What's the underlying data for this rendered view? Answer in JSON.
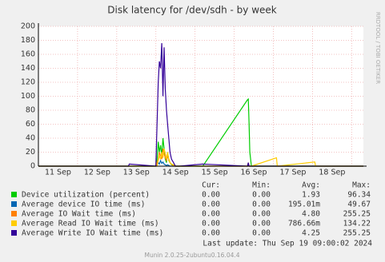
{
  "chart_data": {
    "type": "line",
    "title": "Disk latency for /dev/sdh - by week",
    "side_text": "RRDTOOL / TOBI OETIKER",
    "x": [
      11.0,
      13.3,
      13.32,
      14.0,
      14.03,
      14.06,
      14.09,
      14.12,
      14.15,
      14.18,
      14.21,
      14.24,
      14.27,
      14.3,
      14.33,
      14.36,
      14.4,
      14.45,
      14.5,
      14.6,
      15.2,
      16.34,
      16.36,
      16.38,
      16.4,
      16.44,
      17.08,
      17.1,
      18.06,
      18.08,
      19.3
    ],
    "series": [
      {
        "name": "Device utilization (percent)",
        "color": "#00cc00",
        "values": [
          0,
          0,
          0,
          0,
          10,
          35,
          20,
          30,
          15,
          40,
          25,
          10,
          5,
          20,
          8,
          5,
          2,
          1,
          0,
          0,
          0,
          95,
          96,
          60,
          20,
          0,
          0,
          0,
          0,
          0,
          0
        ]
      },
      {
        "name": "Average device IO time (ms)",
        "color": "#0066b3",
        "values": [
          0,
          0,
          0,
          0,
          2,
          5,
          3,
          8,
          4,
          6,
          3,
          2,
          1,
          2,
          1,
          0,
          0,
          0,
          0,
          0,
          0,
          0,
          1,
          0,
          0,
          0,
          0,
          0,
          0,
          0,
          0
        ]
      },
      {
        "name": "Average IO Wait time (ms)",
        "color": "#ff8000",
        "values": [
          0,
          0,
          0,
          0,
          5,
          10,
          20,
          15,
          10,
          25,
          18,
          12,
          8,
          15,
          10,
          5,
          3,
          0,
          0,
          0,
          0,
          0,
          5,
          0,
          0,
          0,
          0,
          0,
          0,
          0,
          0
        ]
      },
      {
        "name": "Average Read IO Wait time (ms)",
        "color": "#ffcc00",
        "values": [
          0,
          0,
          0,
          0,
          0,
          8,
          15,
          10,
          20,
          12,
          25,
          18,
          10,
          20,
          8,
          5,
          3,
          2,
          0,
          0,
          0,
          0,
          0,
          0,
          0,
          0,
          12,
          0,
          6,
          0,
          0
        ]
      },
      {
        "name": "Average Write IO Wait time (ms)",
        "color": "#330099",
        "values": [
          0,
          0,
          3,
          0,
          60,
          120,
          150,
          140,
          176,
          100,
          170,
          110,
          80,
          60,
          40,
          20,
          10,
          5,
          0,
          0,
          3,
          0,
          5,
          0,
          0,
          0,
          0,
          0,
          0,
          0,
          0
        ]
      }
    ],
    "xlim": [
      11,
      19.3
    ],
    "xticks": [
      {
        "value": 11.5,
        "label": "11 Sep"
      },
      {
        "value": 12.5,
        "label": "12 Sep"
      },
      {
        "value": 13.5,
        "label": "13 Sep"
      },
      {
        "value": 14.5,
        "label": "14 Sep"
      },
      {
        "value": 15.5,
        "label": "15 Sep"
      },
      {
        "value": 16.5,
        "label": "16 Sep"
      },
      {
        "value": 17.5,
        "label": "17 Sep"
      },
      {
        "value": 18.5,
        "label": "18 Sep"
      }
    ],
    "xgrid": [
      12,
      13,
      14,
      15,
      16,
      17,
      18,
      19
    ],
    "ylim": [
      0,
      200
    ],
    "yticks": [
      0,
      20,
      40,
      60,
      80,
      100,
      120,
      140,
      160,
      180,
      200
    ],
    "grid": true,
    "stats_headers": [
      "Cur:",
      "Min:",
      "Avg:",
      "Max:"
    ],
    "stats": [
      [
        "0.00",
        "0.00",
        "1.93",
        "96.34"
      ],
      [
        "0.00",
        "0.00",
        "195.01m",
        "49.67"
      ],
      [
        "0.00",
        "0.00",
        "4.80",
        "255.25"
      ],
      [
        "0.00",
        "0.00",
        "786.66m",
        "134.22"
      ],
      [
        "0.00",
        "0.00",
        "4.25",
        "255.25"
      ]
    ],
    "last_update": "Last update:  Thu Sep 19 09:00:02 2024",
    "footer": "Munin 2.0.25-2ubuntu0.16.04.4"
  }
}
